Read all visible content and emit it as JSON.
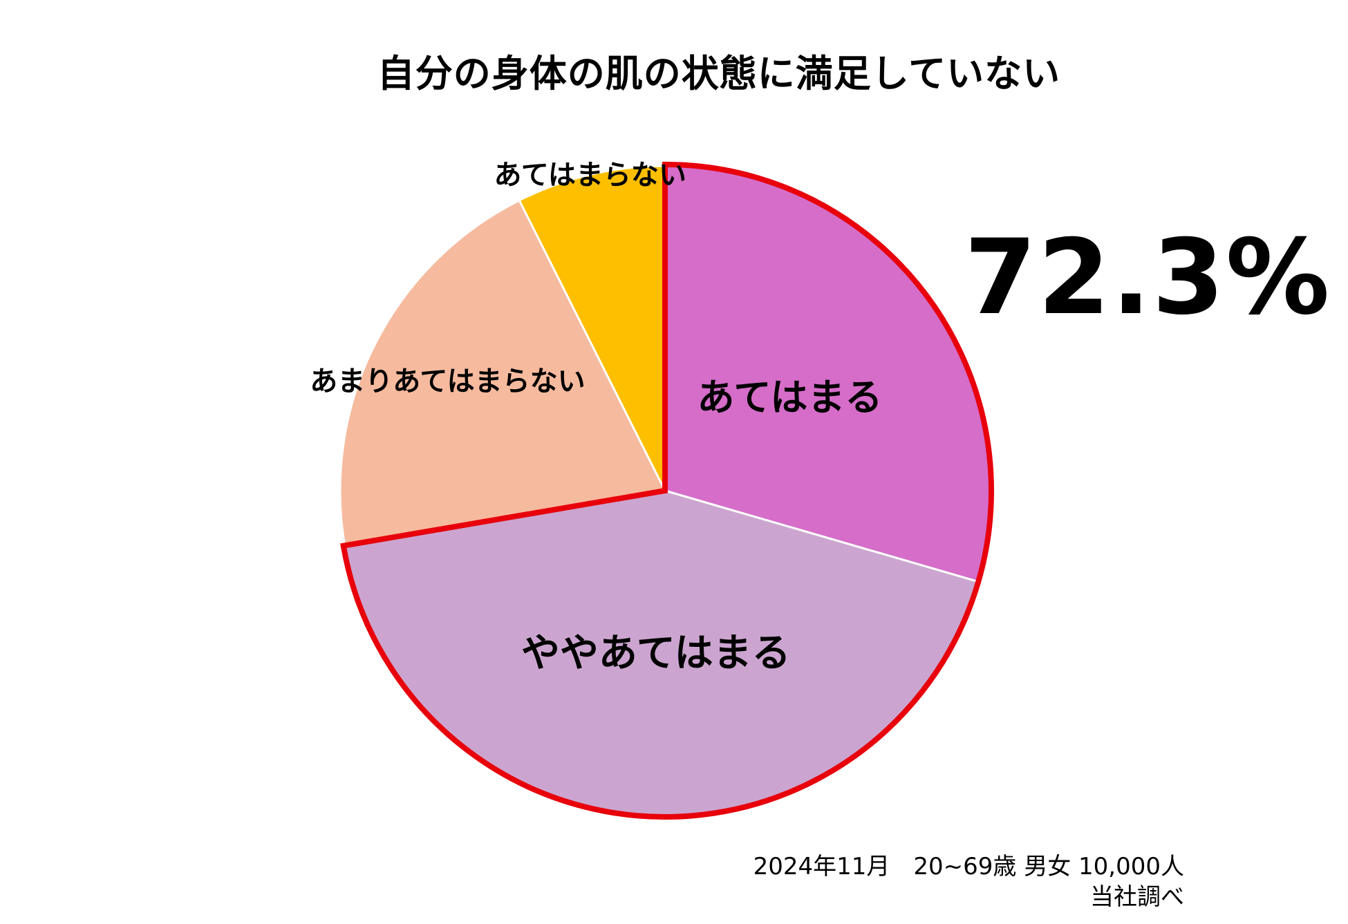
{
  "chart_data": {
    "type": "pie",
    "title": "自分の身体の肌の状態に満足していない",
    "slices": [
      {
        "label": "あてはまる",
        "value": 29.5,
        "color": "#D56DC9"
      },
      {
        "label": "ややあてはまる",
        "value": 42.8,
        "color": "#CBA5CF"
      },
      {
        "label": "あまりあてはまらない",
        "value": 20.3,
        "color": "#F6BA9E"
      },
      {
        "label": "あてはまらない",
        "value": 7.4,
        "color": "#FDBF00"
      }
    ],
    "start_angle_deg": 0,
    "direction": "clockwise",
    "highlight": {
      "slices": [
        "あてはまる",
        "ややあてはまる"
      ],
      "outline_color": "#E8000B",
      "value_text": "72.3%"
    }
  },
  "footnote": {
    "line1": "2024年11月　20~69歳 男女 10,000人",
    "line2": "当社調べ"
  }
}
